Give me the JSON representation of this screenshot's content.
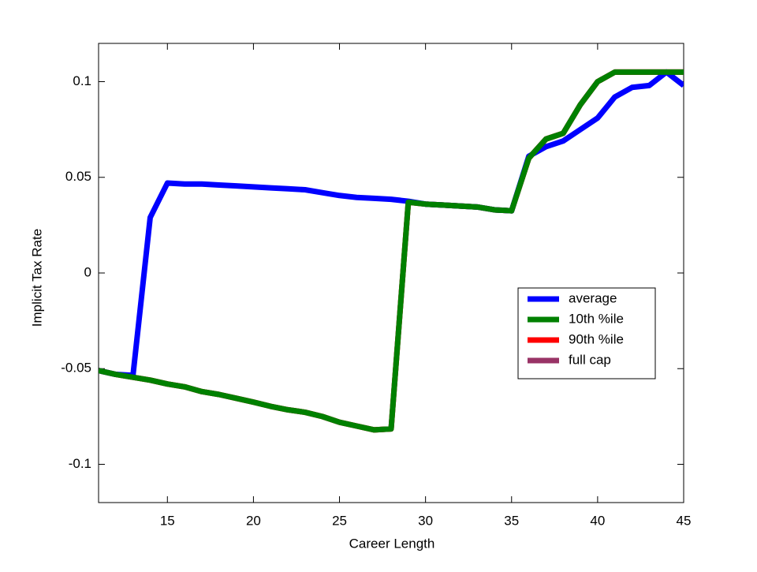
{
  "chart_data": {
    "type": "line",
    "xlabel": "Career Length",
    "ylabel": "Implicit Tax Rate",
    "x": [
      11,
      12,
      13,
      14,
      15,
      16,
      17,
      18,
      19,
      20,
      21,
      22,
      23,
      24,
      25,
      26,
      27,
      28,
      29,
      30,
      31,
      32,
      33,
      34,
      35,
      36,
      37,
      38,
      39,
      40,
      41,
      42,
      43,
      44,
      45
    ],
    "series": [
      {
        "name": "full cap",
        "color": "#993366",
        "values": [
          -0.051,
          -0.053,
          -0.0545,
          -0.056,
          -0.058,
          -0.0595,
          -0.062,
          -0.0635,
          -0.0655,
          -0.0675,
          -0.0697,
          -0.0715,
          -0.0728,
          -0.075,
          -0.078,
          -0.08,
          -0.082,
          -0.0815,
          0.037,
          0.036,
          0.0355,
          0.035,
          0.0345,
          0.033,
          0.0325,
          0.06,
          0.07,
          0.073,
          0.088,
          0.1,
          0.105,
          0.105,
          0.105,
          0.105,
          0.105
        ]
      },
      {
        "name": "90th %ile",
        "color": "#ff0000",
        "values": [
          -0.051,
          -0.053,
          -0.0545,
          -0.056,
          -0.058,
          -0.0595,
          -0.062,
          -0.0635,
          -0.0655,
          -0.0675,
          -0.0697,
          -0.0715,
          -0.0728,
          -0.075,
          -0.078,
          -0.08,
          -0.082,
          -0.0815,
          0.037,
          0.036,
          0.0355,
          0.035,
          0.0345,
          0.033,
          0.0325,
          0.06,
          0.07,
          0.073,
          0.088,
          0.1,
          0.105,
          0.105,
          0.105,
          0.105,
          0.105
        ]
      },
      {
        "name": "average",
        "color": "#0000ff",
        "values": [
          -0.051,
          -0.053,
          -0.0535,
          0.029,
          0.047,
          0.0465,
          0.0465,
          0.046,
          0.0455,
          0.045,
          0.0445,
          0.044,
          0.0435,
          0.042,
          0.0405,
          0.0395,
          0.039,
          0.0385,
          0.0375,
          0.036,
          0.0355,
          0.035,
          0.0345,
          0.033,
          0.0325,
          0.061,
          0.066,
          0.069,
          0.075,
          0.081,
          0.092,
          0.097,
          0.098,
          0.105,
          0.098
        ]
      },
      {
        "name": "10th %ile",
        "color": "#008000",
        "values": [
          -0.051,
          -0.053,
          -0.0545,
          -0.056,
          -0.058,
          -0.0595,
          -0.062,
          -0.0635,
          -0.0655,
          -0.0675,
          -0.0697,
          -0.0715,
          -0.0728,
          -0.075,
          -0.078,
          -0.08,
          -0.082,
          -0.0815,
          0.037,
          0.036,
          0.0355,
          0.035,
          0.0345,
          0.033,
          0.0325,
          0.06,
          0.07,
          0.073,
          0.088,
          0.1,
          0.105,
          0.105,
          0.105,
          0.105,
          0.105
        ]
      }
    ],
    "legend_order": [
      "average",
      "10th %ile",
      "90th %ile",
      "full cap"
    ],
    "xlim": [
      11,
      45
    ],
    "ylim": [
      -0.12,
      0.12
    ],
    "xticks": [
      15,
      20,
      25,
      30,
      35,
      40,
      45
    ],
    "yticks": [
      -0.1,
      -0.05,
      0,
      0.05,
      0.1
    ],
    "legend": "right"
  }
}
